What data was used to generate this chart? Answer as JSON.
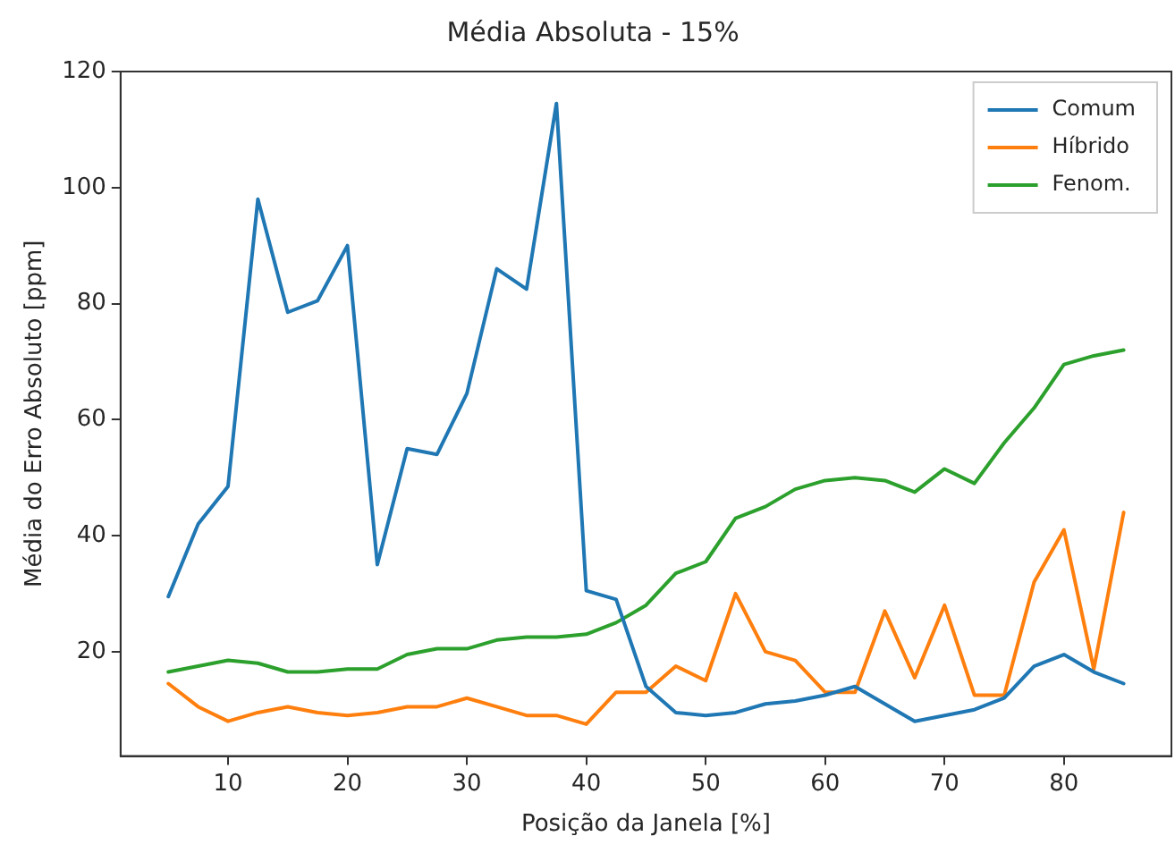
{
  "chart_data": {
    "type": "line",
    "title": "Média Absoluta - 15%",
    "xlabel": "Posição da Janela [%]",
    "ylabel": "Média do Erro Absoluto [ppm]",
    "x": [
      5,
      7.5,
      10,
      12.5,
      15,
      17.5,
      20,
      22.5,
      25,
      27.5,
      30,
      32.5,
      35,
      37.5,
      40,
      42.5,
      45,
      47.5,
      50,
      52.5,
      55,
      57.5,
      60,
      62.5,
      65,
      67.5,
      70,
      72.5,
      75,
      77.5,
      80,
      82.5,
      85
    ],
    "series": [
      {
        "name": "Comum",
        "color": "#1f77b4",
        "values": [
          29.5,
          42,
          48.5,
          98,
          78.5,
          80.5,
          90,
          35,
          55,
          54,
          64.5,
          86,
          82.5,
          114.5,
          30.5,
          29,
          14,
          9.5,
          9,
          9.5,
          11,
          11.5,
          12.5,
          14,
          11,
          8,
          9,
          10,
          12,
          17.5,
          19.5,
          16.5,
          14.5
        ]
      },
      {
        "name": "Híbrido",
        "color": "#ff7f0e",
        "values": [
          14.5,
          10.5,
          8,
          9.5,
          10.5,
          9.5,
          9,
          9.5,
          10.5,
          10.5,
          12,
          10.5,
          9,
          9,
          7.5,
          13,
          13,
          17.5,
          15,
          30,
          20,
          18.5,
          13,
          13,
          27,
          15.5,
          28,
          12.5,
          12.5,
          32,
          41,
          17,
          44
        ]
      },
      {
        "name": "Fenom.",
        "color": "#2ca02c",
        "values": [
          16.5,
          17.5,
          18.5,
          18,
          16.5,
          16.5,
          17,
          17,
          19.5,
          20.5,
          20.5,
          22,
          22.5,
          22.5,
          23,
          25,
          28,
          33.5,
          35.5,
          43,
          45,
          48,
          49.5,
          50,
          49.5,
          47.5,
          51.5,
          49,
          56,
          62,
          69.5,
          71,
          72
        ]
      }
    ],
    "xlim": [
      1,
      89
    ],
    "xticks": [
      10,
      20,
      30,
      40,
      50,
      60,
      70,
      80
    ],
    "ylim": [
      2,
      120
    ],
    "yticks": [
      20,
      40,
      60,
      80,
      100,
      120
    ],
    "grid": false,
    "legend": "top right",
    "marker": "none",
    "line_style": "solid"
  }
}
